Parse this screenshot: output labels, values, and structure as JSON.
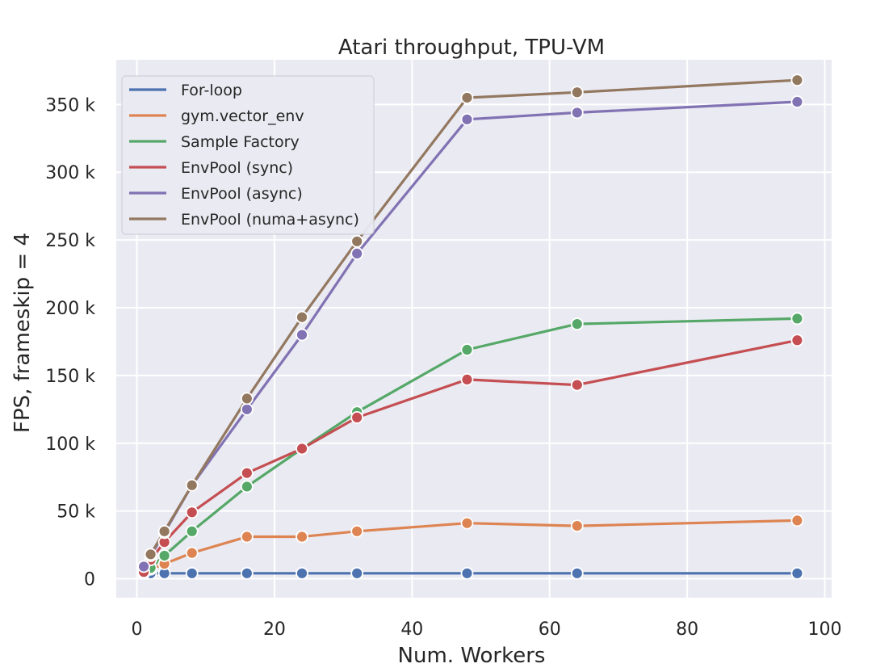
{
  "chart_data": {
    "type": "line",
    "title": "Atari throughput, TPU-VM",
    "xlabel": "Num. Workers",
    "ylabel": "FPS, frameskip = 4",
    "xlim": [
      -3,
      101
    ],
    "ylim": [
      -14000,
      383000
    ],
    "xticks": [
      0,
      20,
      40,
      60,
      80,
      100
    ],
    "xtick_labels": [
      "0",
      "20",
      "40",
      "60",
      "80",
      "100"
    ],
    "yticks": [
      0,
      50000,
      100000,
      150000,
      200000,
      250000,
      300000,
      350000
    ],
    "ytick_labels": [
      "0",
      "50 k",
      "100 k",
      "150 k",
      "200 k",
      "250 k",
      "300 k",
      "350 k"
    ],
    "grid": true,
    "legend_position": "top-left",
    "series": [
      {
        "name": "For-loop",
        "color": "#4c72b0",
        "x": [
          1,
          2,
          4,
          8,
          16,
          24,
          32,
          48,
          64,
          96
        ],
        "y": [
          4000,
          4000,
          4000,
          4000,
          4000,
          4000,
          4000,
          4000,
          4000,
          4000
        ]
      },
      {
        "name": "gym.vector_env",
        "color": "#dd8452",
        "x": [
          1,
          2,
          4,
          8,
          16,
          24,
          32,
          48,
          64,
          96
        ],
        "y": [
          5000,
          7000,
          11000,
          19000,
          31000,
          31000,
          35000,
          41000,
          39000,
          43000
        ]
      },
      {
        "name": "Sample Factory",
        "color": "#55a868",
        "x": [
          1,
          2,
          4,
          8,
          16,
          24,
          32,
          48,
          64,
          96
        ],
        "y": [
          4000,
          8000,
          17000,
          35000,
          68000,
          96000,
          123000,
          169000,
          188000,
          192000
        ]
      },
      {
        "name": "EnvPool (sync)",
        "color": "#c44e52",
        "x": [
          1,
          2,
          4,
          8,
          16,
          24,
          32,
          48,
          64,
          96
        ],
        "y": [
          5000,
          14000,
          27000,
          49000,
          78000,
          96000,
          119000,
          147000,
          143000,
          176000
        ]
      },
      {
        "name": "EnvPool (async)",
        "color": "#8172b3",
        "x": [
          1,
          2,
          4,
          8,
          16,
          24,
          32,
          48,
          64,
          96
        ],
        "y": [
          9000,
          17000,
          34000,
          69000,
          125000,
          180000,
          240000,
          339000,
          344000,
          352000
        ]
      },
      {
        "name": "EnvPool (numa+async)",
        "color": "#937860",
        "x": [
          2,
          4,
          8,
          16,
          24,
          32,
          48,
          64,
          96
        ],
        "y": [
          18000,
          35000,
          69000,
          133000,
          193000,
          249000,
          355000,
          359000,
          368000
        ]
      }
    ]
  }
}
